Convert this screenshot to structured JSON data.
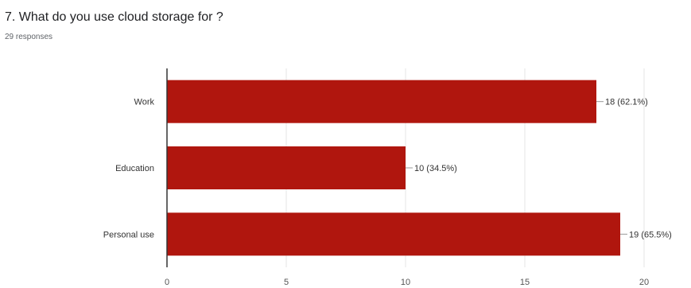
{
  "question": {
    "title": "7. What do you use cloud storage for ?",
    "responses": "29 responses"
  },
  "chart_data": {
    "type": "bar",
    "orientation": "horizontal",
    "categories": [
      "Work",
      "Education",
      "Personal use"
    ],
    "values": [
      18,
      10,
      19
    ],
    "data_labels": [
      "18 (62.1%)",
      "10 (34.5%)",
      "19 (65.5%)"
    ],
    "xlim": [
      0,
      20
    ],
    "x_ticks": [
      "0",
      "5",
      "10",
      "15",
      "20"
    ],
    "grid": true,
    "bar_color": "#b0160e"
  }
}
